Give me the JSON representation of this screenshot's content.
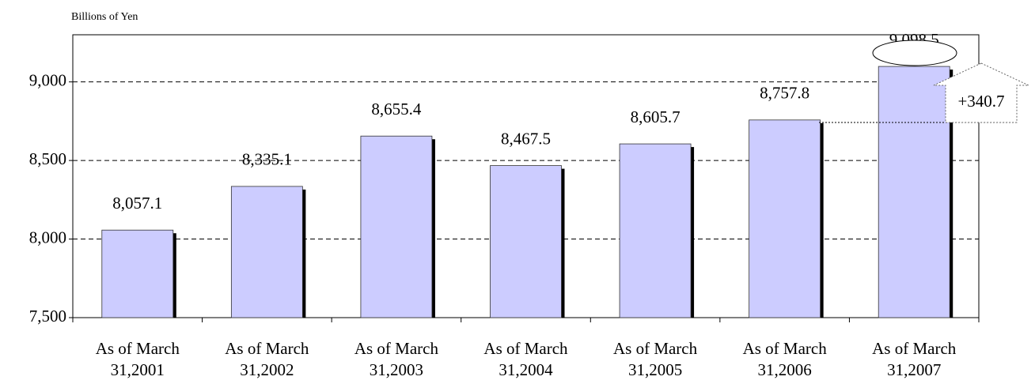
{
  "chart_data": {
    "type": "bar",
    "y_label": "Billions of Yen",
    "categories": [
      "As of March 31,2001",
      "As of March 31,2002",
      "As of March 31,2003",
      "As of March 31,2004",
      "As of March 31,2005",
      "As of March 31,2006",
      "As of March 31,2007"
    ],
    "values": [
      8057.1,
      8335.1,
      8655.4,
      8467.5,
      8605.7,
      8757.8,
      9098.5
    ],
    "value_labels": [
      "8,057.1",
      "8,335.1",
      "8,655.4",
      "8,467.5",
      "8,605.7",
      "8,757.8",
      "9,098.5"
    ],
    "color": "#ccccff",
    "ylim": [
      7500,
      9300
    ],
    "yticks": [
      {
        "value": 7500,
        "label": "7,500"
      },
      {
        "value": 8000,
        "label": "8,000"
      },
      {
        "value": 8500,
        "label": "8,500"
      },
      {
        "value": 9000,
        "label": "9,000"
      }
    ],
    "grid": true,
    "annotation": "+340.7"
  }
}
